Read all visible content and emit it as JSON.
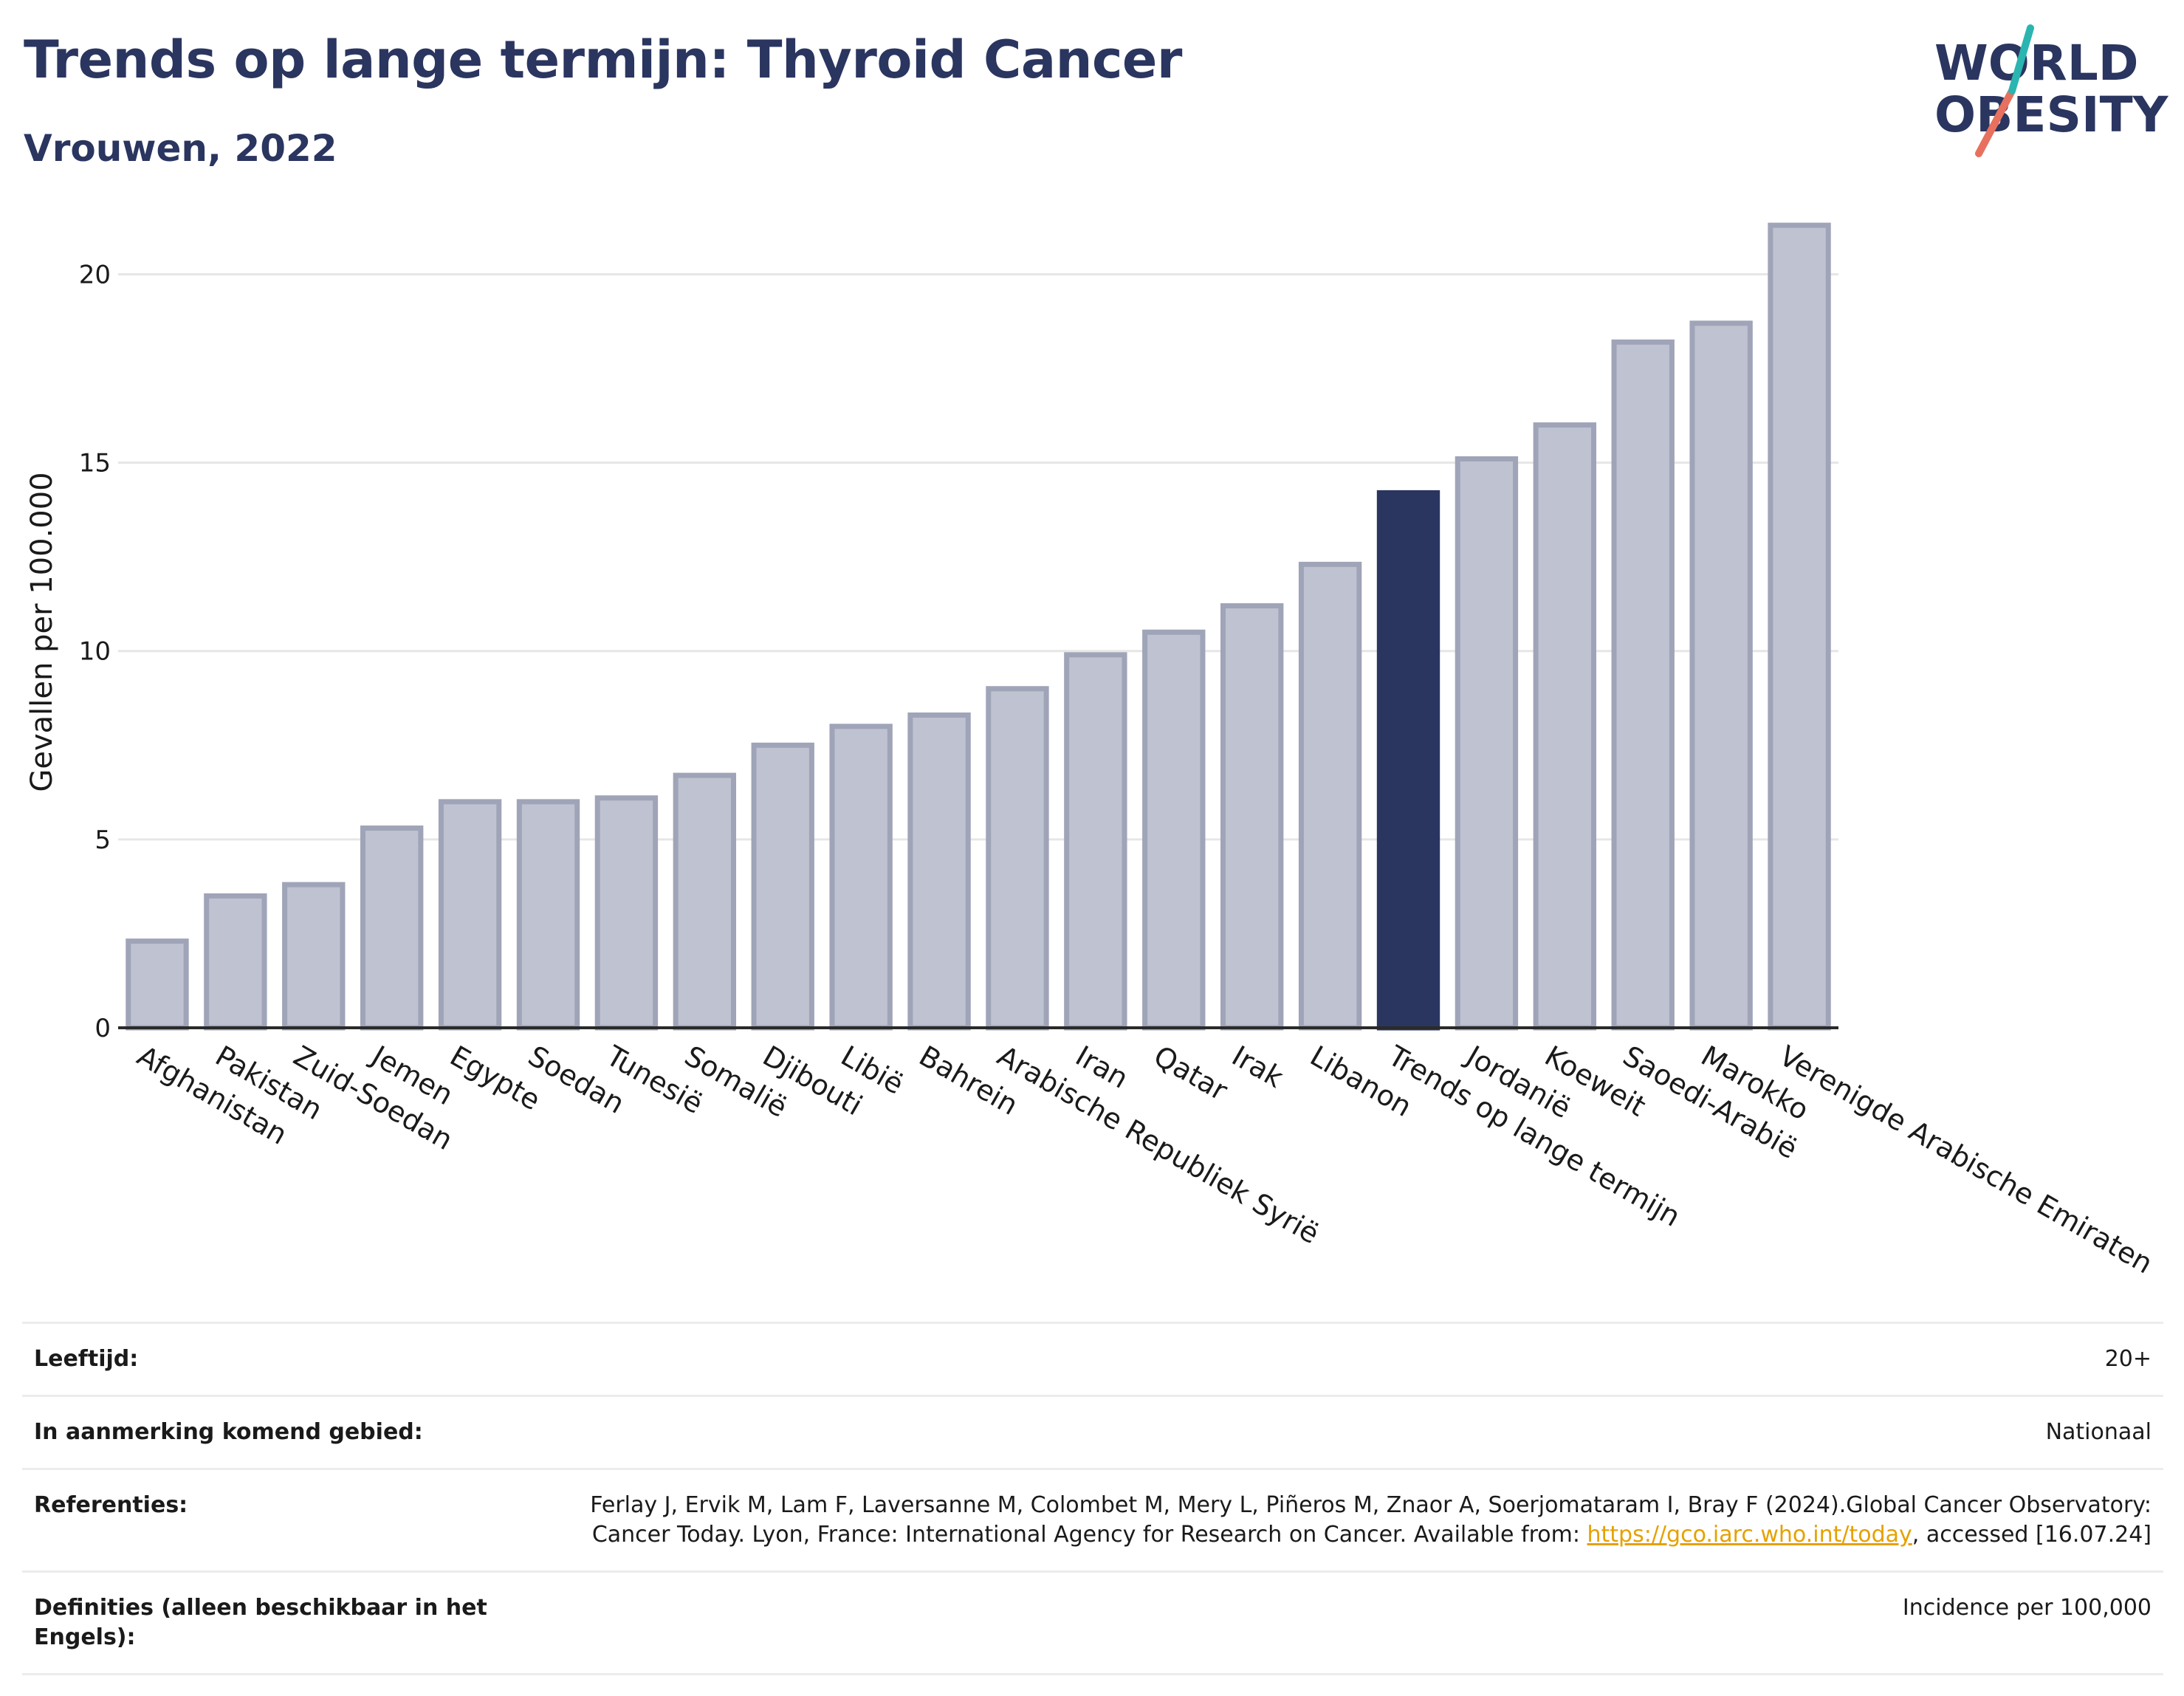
{
  "header": {
    "title": "Trends op lange termijn: Thyroid Cancer",
    "subtitle": "Vrouwen, 2022"
  },
  "logo": {
    "line1": "WORLD",
    "line2": "OBESITY",
    "colors": {
      "text": "#2a3560",
      "slash_teal": "#2bb5b0",
      "slash_red": "#e8705f"
    }
  },
  "chart_data": {
    "type": "bar",
    "ylabel": "Gevallen per 100.000",
    "xlabel": "",
    "ylim": [
      0,
      21.4
    ],
    "yticks": [
      0,
      5,
      10,
      15,
      20
    ],
    "grid": true,
    "categories": [
      "Afghanistan",
      "Pakistan",
      "Zuid-Soedan",
      "Jemen",
      "Egypte",
      "Soedan",
      "Tunesië",
      "Somalië",
      "Djibouti",
      "Libië",
      "Bahrein",
      "Arabische Republiek Syrië",
      "Iran",
      "Qatar",
      "Irak",
      "Libanon",
      "Trends op lange termijn",
      "Jordanië",
      "Koeweit",
      "Saoedi-Arabië",
      "Marokko",
      "Verenigde Arabische Emiraten"
    ],
    "values": [
      2.3,
      3.5,
      3.8,
      5.3,
      6.0,
      6.0,
      6.1,
      6.7,
      7.5,
      8.0,
      8.3,
      9.0,
      9.9,
      10.5,
      11.2,
      12.3,
      14.2,
      15.1,
      16.0,
      18.2,
      18.7,
      21.3
    ],
    "highlight": "Trends op lange termijn",
    "colors": {
      "bar": "#bfc2d0",
      "bar_border": "#9fa4b8",
      "highlight": "#2a3560",
      "grid": "#e6e6e6"
    }
  },
  "meta": {
    "age_label": "Leeftijd:",
    "age_value": "20+",
    "area_label": "In aanmerking komend gebied:",
    "area_value": "Nationaal",
    "ref_label": "Referenties:",
    "ref_text_1": "Ferlay J, Ervik M, Lam F, Laversanne M, Colombet M, Mery L, Piñeros M, Znaor A, Soerjomataram I, Bray F (2024).Global Cancer Observatory: Cancer Today. Lyon, France: International Agency for Research on Cancer. Available from:",
    "ref_link": "https://gco.iarc.who.int/today",
    "ref_text_2": ", accessed [16.07.24]",
    "def_label": "Definities (alleen beschikbaar in het Engels):",
    "def_value": "Incidence per 100,000"
  }
}
